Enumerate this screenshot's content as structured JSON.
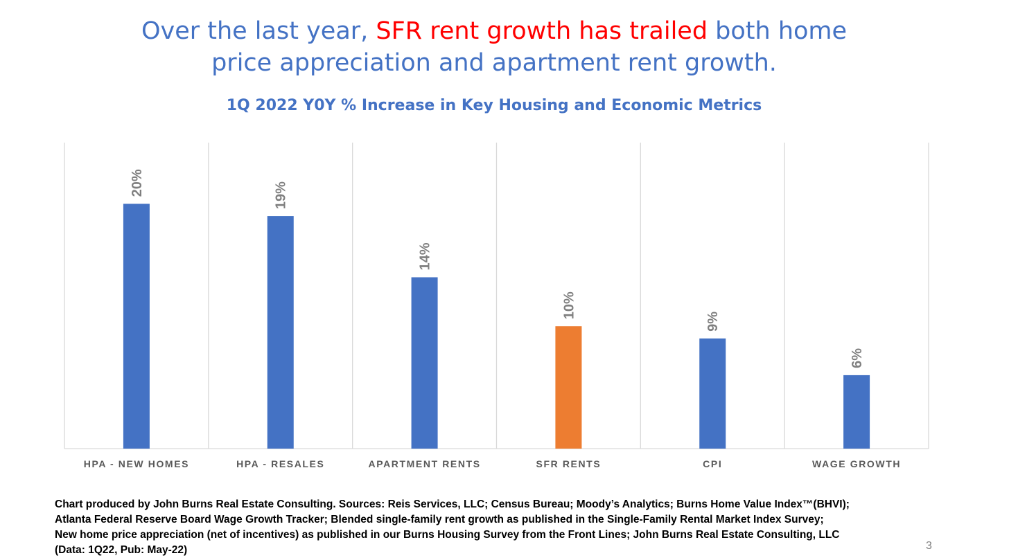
{
  "headline": {
    "part1": "Over the last year, ",
    "highlight": "SFR rent growth has trailed",
    "part2": " both home",
    "line2": "price appreciation and apartment rent growth."
  },
  "colors": {
    "headline": "#4472C4",
    "highlight": "#FF0000",
    "bar": "#4472C4",
    "highlight_bar": "#ED7D31",
    "data_label": "#7F7F7F",
    "axis_label": "#595959",
    "gridline": "#D9D9D9"
  },
  "chart_data": {
    "type": "bar",
    "title": "1Q 2022 Y0Y % Increase in Key Housing and Economic Metrics",
    "categories": [
      "HPA - NEW HOMES",
      "HPA - RESALES",
      "APARTMENT RENTS",
      "SFR RENTS",
      "CPI",
      "WAGE GROWTH"
    ],
    "values": [
      20,
      19,
      14,
      10,
      9,
      6
    ],
    "data_labels": [
      "20%",
      "19%",
      "14%",
      "10%",
      "9%",
      "6%"
    ],
    "highlight_category": "SFR RENTS",
    "ylim": [
      0,
      25
    ],
    "xlabel": "",
    "ylabel": "",
    "grid": "vertical-category-separators",
    "legend": "none"
  },
  "source": {
    "lines": [
      "Chart produced by John Burns Real Estate Consulting. Sources: Reis Services, LLC; Census Bureau; Moody’s Analytics; Burns Home Value Index™(BHVI);",
      "Atlanta Federal Reserve Board Wage Growth Tracker; Blended single-family rent growth as published in the Single-Family Rental Market Index Survey;",
      "New home price appreciation (net of incentives) as published in our Burns Housing Survey from the Front Lines; John Burns Real Estate Consulting, LLC",
      "(Data: 1Q22, Pub: May-22)"
    ]
  },
  "page_number": "3"
}
